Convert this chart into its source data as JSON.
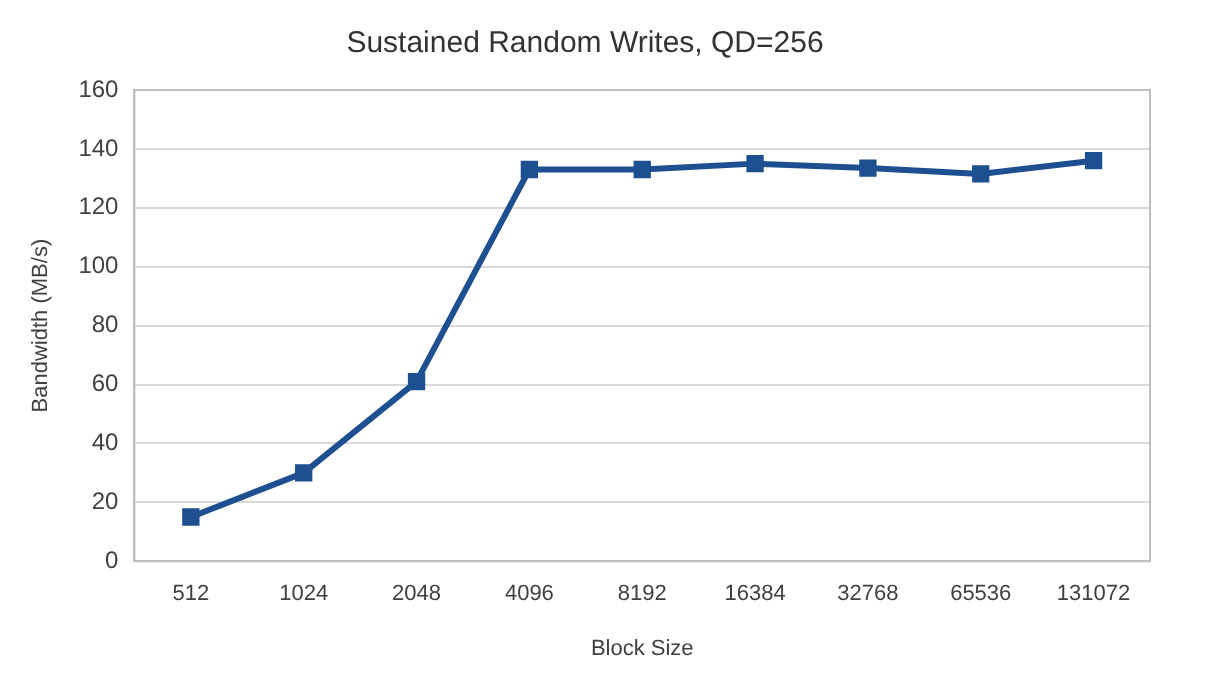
{
  "chart_data": {
    "type": "line",
    "title": "Sustained Random Writes, QD=256",
    "xlabel": "Block Size",
    "ylabel": "Bandwidth (MB/s)",
    "categories": [
      "512",
      "1024",
      "2048",
      "4096",
      "8192",
      "16384",
      "32768",
      "65536",
      "131072"
    ],
    "series": [
      {
        "color": "#1d4f91",
        "values": [
          15,
          30,
          61,
          133,
          133,
          135,
          133.5,
          131.5,
          136
        ]
      }
    ],
    "ylim": [
      0,
      160
    ],
    "yticks": [
      0,
      20,
      40,
      60,
      80,
      100,
      120,
      140,
      160
    ],
    "grid": "y",
    "legend": false,
    "marker": "square",
    "line_style": "solid"
  }
}
